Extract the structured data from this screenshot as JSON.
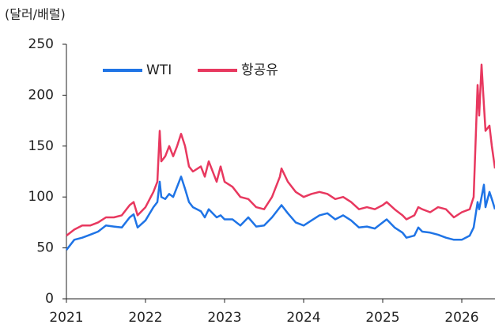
{
  "chart_data": {
    "type": "line",
    "y_label": "(달러/배럴)",
    "x": [
      2021.0,
      2021.1,
      2021.2,
      2021.3,
      2021.4,
      2021.5,
      2021.6,
      2021.7,
      2021.8,
      2021.85,
      2021.9,
      2022.0,
      2022.1,
      2022.15,
      2022.18,
      2022.2,
      2022.25,
      2022.3,
      2022.35,
      2022.4,
      2022.45,
      2022.5,
      2022.55,
      2022.6,
      2022.7,
      2022.75,
      2022.8,
      2022.9,
      2022.95,
      2023.0,
      2023.1,
      2023.2,
      2023.3,
      2023.4,
      2023.5,
      2023.6,
      2023.7,
      2023.72,
      2023.8,
      2023.9,
      2024.0,
      2024.1,
      2024.2,
      2024.3,
      2024.4,
      2024.5,
      2024.6,
      2024.7,
      2024.8,
      2024.9,
      2025.0,
      2025.05,
      2025.15,
      2025.25,
      2025.3,
      2025.4,
      2025.45,
      2025.5,
      2025.6,
      2025.7,
      2025.8,
      2025.9,
      2026.0,
      2026.1,
      2026.15,
      2026.2,
      2026.22,
      2026.25,
      2026.28,
      2026.3,
      2026.35,
      2026.38,
      2026.42
    ],
    "series": [
      {
        "name": "WTI",
        "color": "#1f74e6",
        "values": [
          48,
          58,
          60,
          63,
          66,
          72,
          71,
          70,
          80,
          83,
          70,
          77,
          90,
          95,
          115,
          100,
          98,
          103,
          100,
          110,
          120,
          108,
          95,
          90,
          86,
          80,
          88,
          80,
          82,
          78,
          78,
          72,
          80,
          71,
          72,
          80,
          90,
          92,
          84,
          75,
          72,
          77,
          82,
          84,
          78,
          82,
          77,
          70,
          71,
          69,
          75,
          78,
          70,
          65,
          60,
          62,
          70,
          66,
          65,
          63,
          60,
          58,
          58,
          62,
          70,
          95,
          88,
          100,
          112,
          90,
          105,
          98,
          88
        ]
      },
      {
        "name": "항공유",
        "color": "#e8385f",
        "values": [
          62,
          68,
          72,
          72,
          75,
          80,
          80,
          82,
          92,
          95,
          82,
          90,
          105,
          115,
          165,
          135,
          140,
          150,
          140,
          150,
          162,
          150,
          130,
          125,
          130,
          120,
          135,
          115,
          130,
          115,
          110,
          100,
          98,
          90,
          88,
          100,
          120,
          128,
          115,
          105,
          100,
          103,
          105,
          103,
          98,
          100,
          95,
          88,
          90,
          88,
          92,
          95,
          88,
          82,
          78,
          82,
          90,
          88,
          85,
          90,
          88,
          80,
          85,
          88,
          100,
          210,
          180,
          230,
          190,
          165,
          170,
          150,
          128
        ]
      }
    ],
    "xlim": [
      2021,
      2026.42
    ],
    "xticks": [
      2021,
      2022,
      2023,
      2024,
      2025,
      2026
    ],
    "ylim": [
      0,
      250
    ],
    "yticks": [
      0,
      50,
      100,
      150,
      200,
      250
    ],
    "legend": "upper left"
  }
}
